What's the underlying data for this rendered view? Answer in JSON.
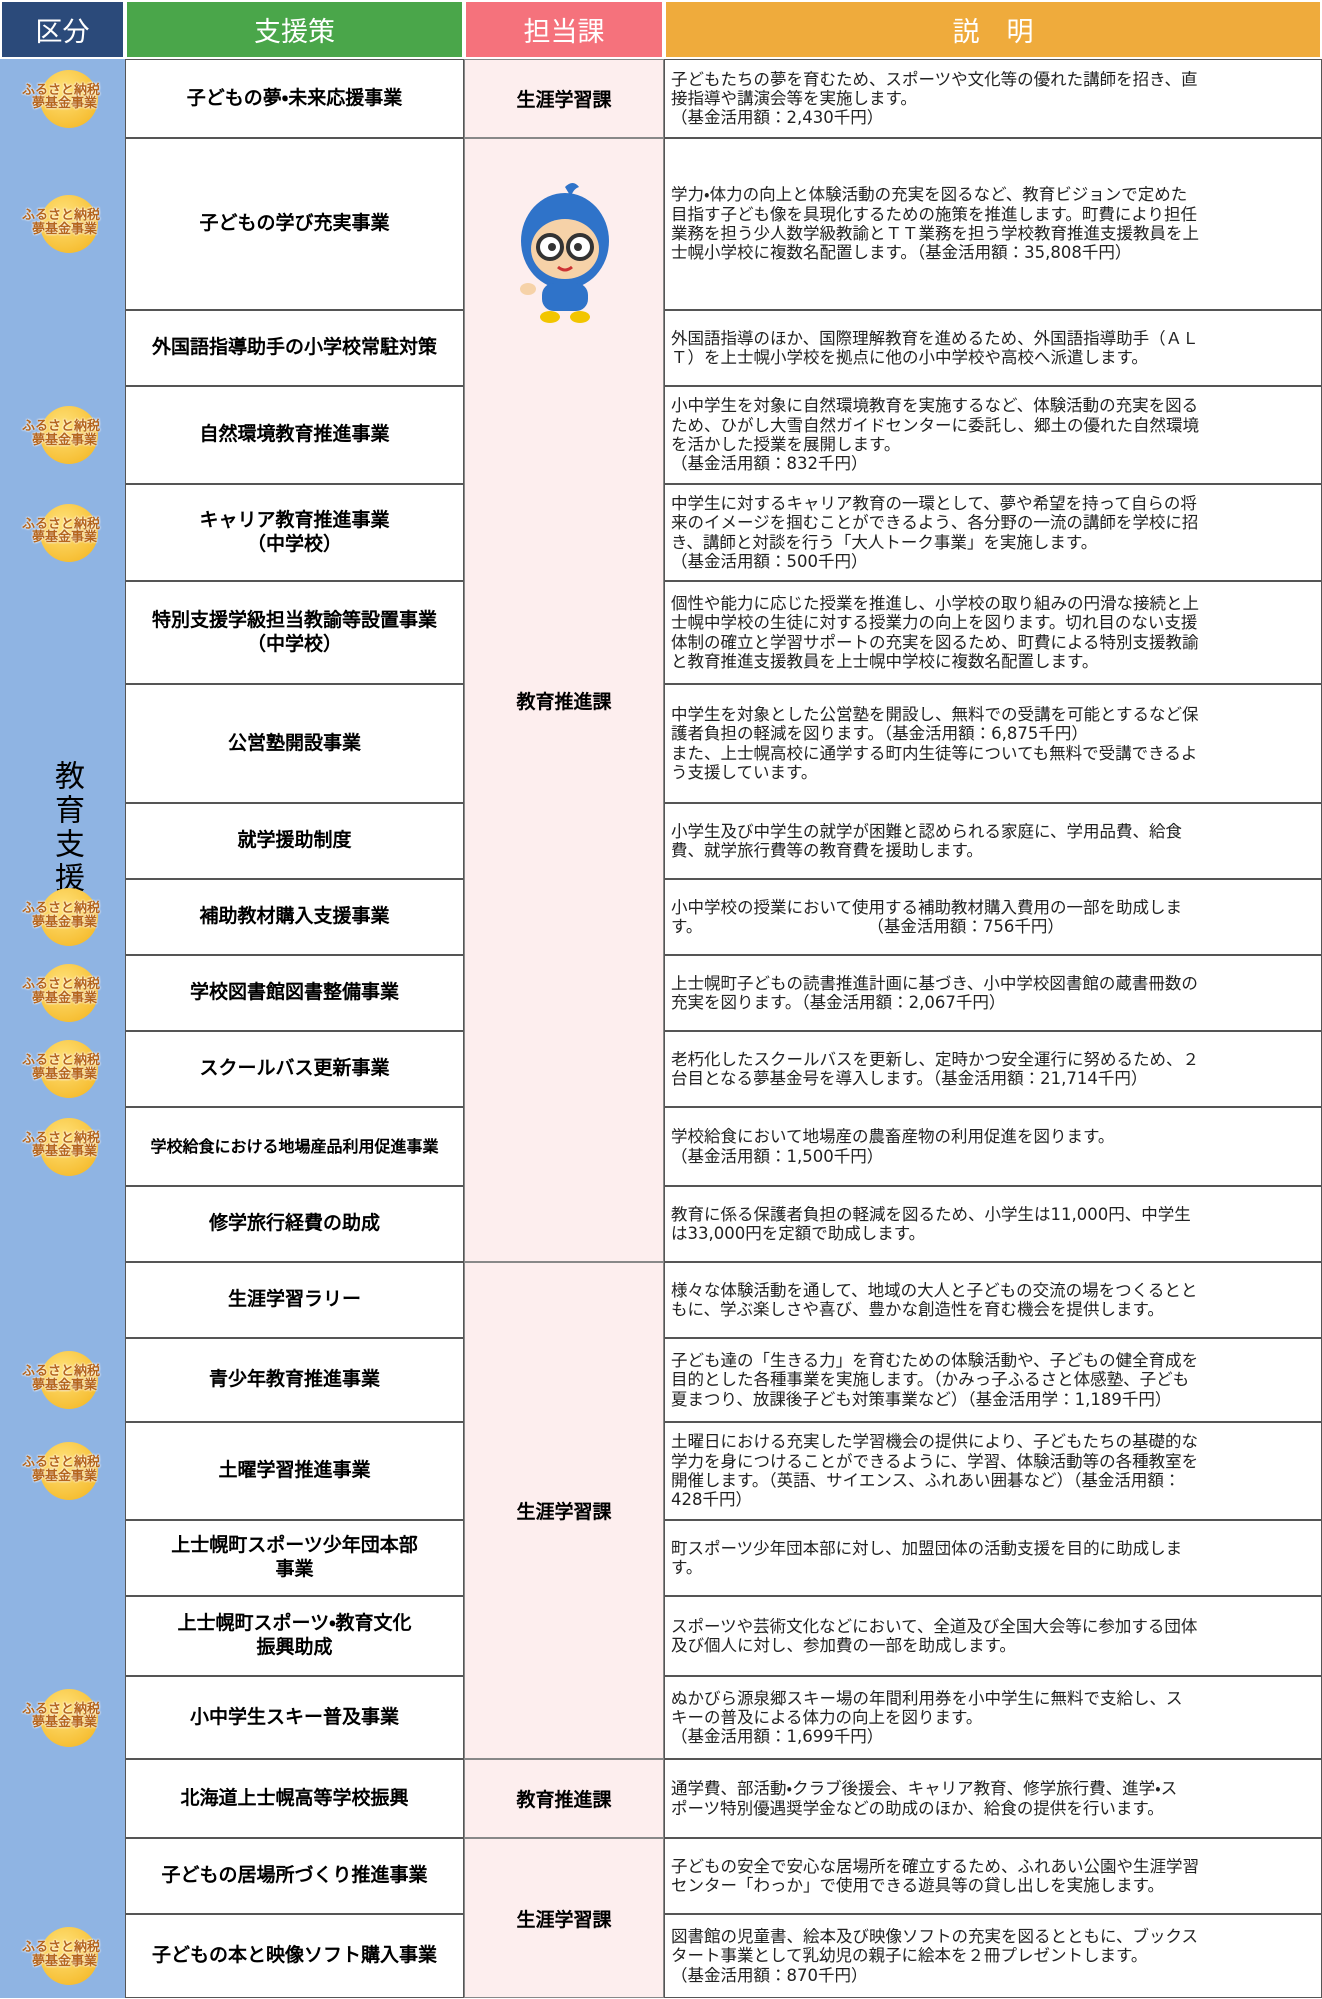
{
  "header": [
    "区分",
    "支援策",
    "担当課",
    "説　明"
  ],
  "category": "教育支援",
  "rows": [
    {
      "measure": [
        "子どもの夢・未来応援事業"
      ],
      "department": "生涯学習課",
      "badge": [
        "ふるさと納税",
        "夢基金事業"
      ],
      "description": [
        "子どもたちの夢を育むため、スポーツや文化等の優れた講師を招き、直",
        "接指導や講演会等を実施します。",
        "（基金活用額：2,430千円）"
      ]
    },
    {
      "measure": [
        "子どもの学び充実事業"
      ],
      "department": "教育推進課",
      "badge": [
        "ふるさと納税",
        "夢基金事業"
      ],
      "description": [
        "学力・体力の向上と体験活動の充実を図るなど、教育ビジョンで定めた",
        "目指す子ども像を具現化するための施策を推進します。町費により担任",
        "業務を担う少人数学級教諭とＴＴ業務を担う学校教育推進支援教員を上",
        "士幌小学校に複数名配置します。（基金活用額：35,808千円）"
      ]
    },
    {
      "measure": [
        "外国語指導助手の小学校常駐対策"
      ],
      "department": "教育推進課",
      "description": [
        "外国語指導のほか、国際理解教育を進めるため、外国語指導助手（ＡＬ",
        "Ｔ）を上士幌小学校を拠点に他の小中学校や高校へ派遣します。"
      ]
    },
    {
      "measure": [
        "自然環境教育推進事業"
      ],
      "department": "教育推進課",
      "badge": [
        "ふるさと納税",
        "夢基金事業"
      ],
      "description": [
        "小中学生を対象に自然環境教育を実施するなど、体験活動の充実を図る",
        "ため、ひがし大雪自然ガイドセンターに委託し、郷土の優れた自然環境",
        "を活かした授業を展開します。",
        "（基金活用額：832千円）"
      ]
    },
    {
      "measure": [
        "キャリア教育推進事業",
        "（中学校）"
      ],
      "department": "教育推進課",
      "badge": [
        "ふるさと納税",
        "夢基金事業"
      ],
      "description": [
        "中学生に対するキャリア教育の一環として、夢や希望を持って自らの将",
        "来のイメージを掴むことができるよう、各分野の一流の講師を学校に招",
        "き、講師と対談を行う「大人トーク事業」を実施します。",
        "（基金活用額：500千円）"
      ]
    },
    {
      "measure": [
        "特別支援学級担当教諭等設置事業",
        "（中学校）"
      ],
      "department": "教育推進課",
      "description": [
        "個性や能力に応じた授業を推進し、小学校の取り組みの円滑な接続と上",
        "士幌中学校の生徒に対する授業力の向上を図ります。切れ目のない支援",
        "体制の確立と学習サポートの充実を図るため、町費による特別支援教諭",
        "と教育推進支援教員を上士幌中学校に複数名配置します。"
      ]
    },
    {
      "measure": [
        "公営塾開設事業"
      ],
      "department": "教育推進課",
      "description": [
        "中学生を対象とした公営塾を開設し、無料での受講を可能とするなど保",
        "護者負担の軽減を図ります。（基金活用額：6,875千円）",
        "また、上士幌高校に通学する町内生徒等についても無料で受講できるよ",
        "う支援しています。"
      ]
    },
    {
      "measure": [
        "就学援助制度"
      ],
      "department": "教育推進課",
      "description": [
        "小学生及び中学生の就学が困難と認められる家庭に、学用品費、給食",
        "費、就学旅行費等の教育費を援助します。"
      ]
    },
    {
      "measure": [
        "補助教材購入支援事業"
      ],
      "department": "教育推進課",
      "badge": [
        "ふるさと納税",
        "夢基金事業"
      ],
      "description": [
        "小中学校の授業において使用する補助教材購入費用の一部を助成しま",
        "す。　　　　　　　　　　　（基金活用額：756千円）"
      ]
    },
    {
      "measure": [
        "学校図書館図書整備事業"
      ],
      "department": "教育推進課",
      "badge": [
        "ふるさと納税",
        "夢基金事業"
      ],
      "description": [
        "上士幌町子どもの読書推進計画に基づき、小中学校図書館の蔵書冊数の",
        "充実を図ります。（基金活用額：2,067千円）"
      ]
    },
    {
      "measure": [
        "スクールバス更新事業"
      ],
      "department": "教育推進課",
      "badge": [
        "ふるさと納税",
        "夢基金事業"
      ],
      "description": [
        "老朽化したスクールバスを更新し、定時かつ安全運行に努めるため、２",
        "台目となる夢基金号を導入します。（基金活用額：21,714千円）"
      ]
    },
    {
      "measure": [
        "学校給食における地場産品利用促進事業"
      ],
      "department": "教育推進課",
      "badge": [
        "ふるさと納税",
        "夢基金事業"
      ],
      "description": [
        "学校給食において地場産の農畜産物の利用促進を図ります。",
        "（基金活用額：1,500千円）"
      ]
    },
    {
      "measure": [
        "修学旅行経費の助成"
      ],
      "department": "教育推進課",
      "description": [
        "教育に係る保護者負担の軽減を図るため、小学生は11,000円、中学生",
        "は33,000円を定額で助成します。"
      ]
    },
    {
      "measure": [
        "生涯学習ラリー"
      ],
      "department": "生涯学習課",
      "description": [
        "様々な体験活動を通して、地域の大人と子どもの交流の場をつくるとと",
        "もに、学ぶ楽しさや喜び、豊かな創造性を育む機会を提供します。"
      ]
    },
    {
      "measure": [
        "青少年教育推進事業"
      ],
      "department": "生涯学習課",
      "badge": [
        "ふるさと納税",
        "夢基金事業"
      ],
      "description": [
        "子ども達の「生きる力」を育むための体験活動や、子どもの健全育成を",
        "目的とした各種事業を実施します。（かみっ子ふるさと体感塾、子ども",
        "夏まつり、放課後子ども対策事業など）（基金活用学：1,189千円）"
      ]
    },
    {
      "measure": [
        "土曜学習推進事業"
      ],
      "department": "生涯学習課",
      "badge": [
        "ふるさと納税",
        "夢基金事業"
      ],
      "description": [
        "土曜日における充実した学習機会の提供により、子どもたちの基礎的な",
        "学力を身につけることができるように、学習、体験活動等の各種教室を",
        "開催します。（英語、サイエンス、ふれあい囲碁など）（基金活用額：",
        "428千円）"
      ]
    },
    {
      "measure": [
        "上士幌町スポーツ少年団本部",
        "事業"
      ],
      "department": "生涯学習課",
      "description": [
        "町スポーツ少年団本部に対し、加盟団体の活動支援を目的に助成しま",
        "す。"
      ]
    },
    {
      "measure": [
        "上士幌町スポーツ・教育文化",
        "振興助成"
      ],
      "department": "生涯学習課",
      "description": [
        "スポーツや芸術文化などにおいて、全道及び全国大会等に参加する団体",
        "及び個人に対し、参加費の一部を助成します。"
      ]
    },
    {
      "measure": [
        "小中学生スキー普及事業"
      ],
      "department": "生涯学習課",
      "badge": [
        "ふるさと納税",
        "夢基金事業"
      ],
      "description": [
        "ぬかびら源泉郷スキー場の年間利用券を小中学生に無料で支給し、ス",
        "キーの普及による体力の向上を図ります。",
        "（基金活用額：1,699千円）"
      ]
    },
    {
      "measure": [
        "北海道上士幌高等学校振興"
      ],
      "department": "教育推進課",
      "description": [
        "通学費、部活動・クラブ後援会、キャリア教育、修学旅行費、進学・ス",
        "ポーツ特別優遇奨学金などの助成のほか、給食の提供を行います。"
      ]
    },
    {
      "measure": [
        "子どもの居場所づくり推進事業"
      ],
      "department": "生涯学習課",
      "description": [
        "子どもの安全で安心な居場所を確立するため、ふれあい公園や生涯学習",
        "センター「わっか」で使用できる遊具等の貸し出しを実施します。"
      ]
    },
    {
      "measure": [
        "子どもの本と映像ソフト購入事業"
      ],
      "department": "生涯学習課",
      "badge": [
        "ふるさと納税",
        "夢基金事業"
      ],
      "description": [
        "図書館の児童書、絵本及び映像ソフトの充実を図るとともに、ブックス",
        "タート事業として乳幼児の親子に絵本を２冊プレゼントします。",
        "（基金活用額：870千円）"
      ]
    }
  ]
}
